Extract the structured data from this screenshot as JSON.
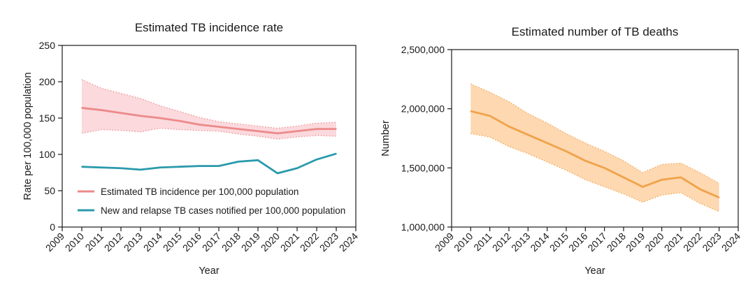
{
  "chart_data": [
    {
      "type": "line",
      "title": "Estimated TB incidence rate",
      "xlabel": "Year",
      "ylabel": "Rate per 100,000 population",
      "xlim": [
        2009,
        2024
      ],
      "ylim": [
        0,
        250
      ],
      "x_ticks": [
        "2009",
        "2010",
        "2011",
        "2012",
        "2013",
        "2014",
        "2015",
        "2016",
        "2017",
        "2018",
        "2019",
        "2020",
        "2021",
        "2022",
        "2023",
        "2024"
      ],
      "y_ticks": [
        "0",
        "50",
        "100",
        "150",
        "200",
        "250"
      ],
      "legend_position": "bottom-left",
      "series": [
        {
          "name": "Estimated TB incidence per 100,000 population",
          "color": "#ec8a8a",
          "band_color": "#fbd9dd",
          "x": [
            2010,
            2011,
            2012,
            2013,
            2014,
            2015,
            2016,
            2017,
            2018,
            2019,
            2020,
            2021,
            2022,
            2023
          ],
          "values": [
            164,
            161,
            157,
            153,
            150,
            146,
            141,
            138,
            135,
            132,
            129,
            132,
            135,
            135
          ],
          "lower": [
            129,
            134,
            133,
            131,
            136,
            134,
            133,
            132,
            128,
            125,
            121,
            124,
            126,
            125
          ],
          "upper": [
            203,
            191,
            184,
            177,
            167,
            159,
            151,
            145,
            142,
            139,
            136,
            139,
            143,
            144
          ]
        },
        {
          "name": "New and relapse TB cases notified per 100,000 population",
          "color": "#2a9aac",
          "x": [
            2010,
            2011,
            2012,
            2013,
            2014,
            2015,
            2016,
            2017,
            2018,
            2019,
            2020,
            2021,
            2022,
            2023
          ],
          "values": [
            83,
            82,
            81,
            79,
            82,
            83,
            84,
            84,
            90,
            92,
            74,
            81,
            93,
            101
          ]
        }
      ]
    },
    {
      "type": "line",
      "title": "Estimated number of TB deaths",
      "xlabel": "Year",
      "ylabel": "Number",
      "xlim": [
        2009,
        2024
      ],
      "ylim": [
        1000000,
        2500000
      ],
      "x_ticks": [
        "2009",
        "2010",
        "2011",
        "2012",
        "2013",
        "2014",
        "2015",
        "2016",
        "2017",
        "2018",
        "2019",
        "2020",
        "2021",
        "2022",
        "2023",
        "2024"
      ],
      "y_ticks": [
        "1,000,000",
        "1,500,000",
        "2,000,000",
        "2,500,000"
      ],
      "series": [
        {
          "name": "Estimated number of TB deaths",
          "color": "#f0a24a",
          "band_color": "#fdd8b0",
          "x": [
            2010,
            2011,
            2012,
            2013,
            2014,
            2015,
            2016,
            2017,
            2018,
            2019,
            2020,
            2021,
            2022,
            2023
          ],
          "values": [
            1980000,
            1940000,
            1850000,
            1780000,
            1710000,
            1640000,
            1560000,
            1500000,
            1420000,
            1340000,
            1400000,
            1420000,
            1320000,
            1250000
          ],
          "lower": [
            1790000,
            1760000,
            1680000,
            1620000,
            1550000,
            1480000,
            1400000,
            1340000,
            1280000,
            1210000,
            1270000,
            1290000,
            1200000,
            1130000
          ],
          "upper": [
            2210000,
            2140000,
            2060000,
            1960000,
            1880000,
            1790000,
            1710000,
            1640000,
            1560000,
            1460000,
            1530000,
            1540000,
            1460000,
            1370000
          ]
        }
      ]
    }
  ]
}
